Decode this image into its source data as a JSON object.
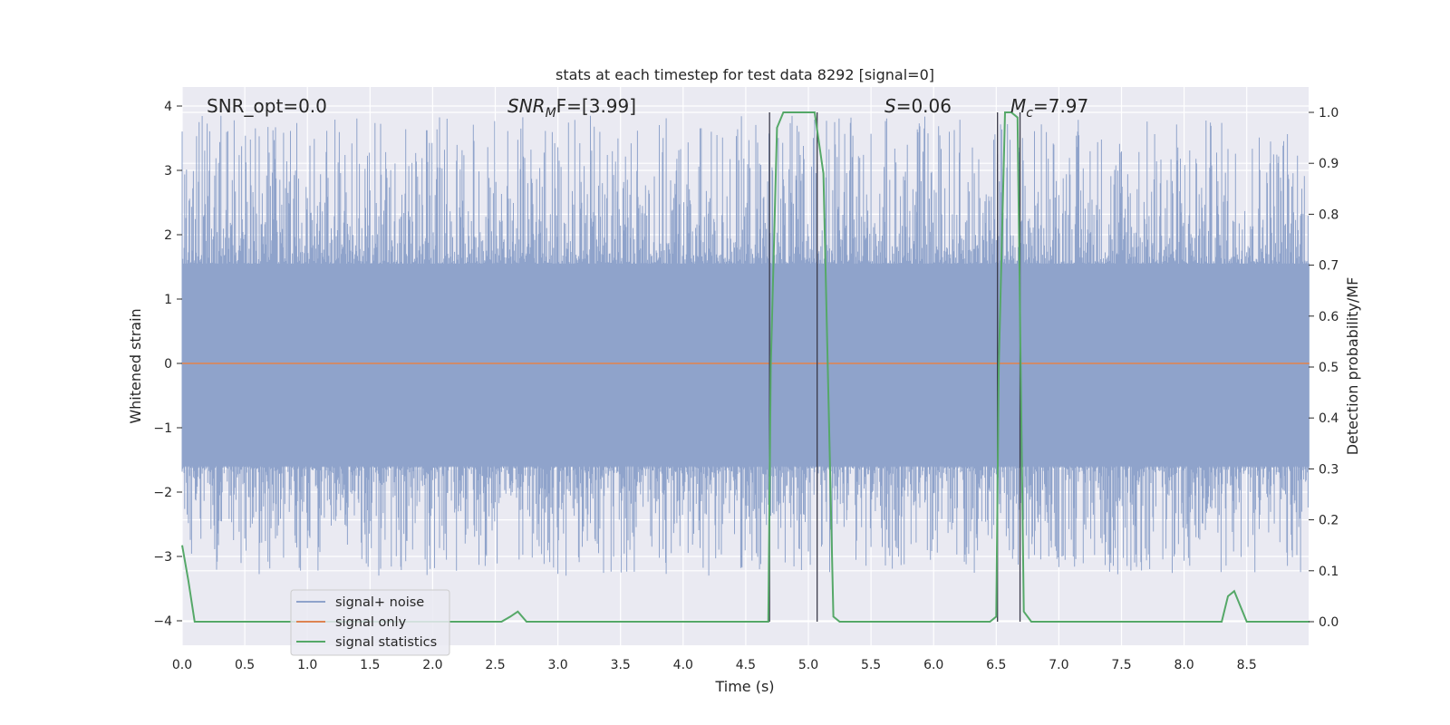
{
  "chart_data": {
    "type": "line",
    "title": "stats at each timestep for test data 8292 [signal=0]",
    "xlabel": "Time (s)",
    "ylabel": "Whitened strain",
    "y2label": "Detection probability/MF",
    "xlim": [
      0,
      9.0
    ],
    "ylim": [
      -4.4,
      4.3
    ],
    "y2lim": [
      -0.048,
      1.048
    ],
    "grid": true,
    "x_ticks": [
      "0.0",
      "0.5",
      "1.0",
      "1.5",
      "2.0",
      "2.5",
      "3.0",
      "3.5",
      "4.0",
      "4.5",
      "5.0",
      "5.5",
      "6.0",
      "6.5",
      "7.0",
      "7.5",
      "8.0",
      "8.5"
    ],
    "y_ticks": [
      "4",
      "3",
      "2",
      "1",
      "0",
      "−1",
      "−2",
      "−3",
      "−4"
    ],
    "y2_ticks": [
      "1.0",
      "0.9",
      "0.8",
      "0.7",
      "0.6",
      "0.5",
      "0.4",
      "0.3",
      "0.2",
      "0.1",
      "0.0"
    ],
    "annotations": {
      "snr_opt": "SNR_opt=0.0",
      "snr_mf_main": "SNR",
      "snr_mf_sub": "M",
      "snr_mf_tail": "F=[3.99]",
      "s_main": "S",
      "s_tail": "=0.06",
      "mc_main": "M",
      "mc_sub": "c",
      "mc_tail": "=7.97"
    },
    "legend": {
      "placement": "lower-left",
      "entries": [
        "signal+ noise",
        "signal only",
        "signal statistics"
      ]
    },
    "colors": {
      "noise": "#8fa3cb",
      "signal": "#dd8452",
      "stats": "#55a868",
      "vlines": "#3a3a4a",
      "background": "#eaeaf2",
      "grid": "#ffffff"
    },
    "series": [
      {
        "name": "signal+ noise",
        "description_style": "noise band",
        "band_limits": [
          -1.6,
          1.55
        ],
        "peak_envelope": [
          -3.3,
          3.9
        ]
      },
      {
        "name": "signal only",
        "x": [
          0,
          9.0
        ],
        "y": [
          0,
          0
        ]
      },
      {
        "name": "signal statistics",
        "axis": "y2",
        "x": [
          0.0,
          0.05,
          0.1,
          0.15,
          2.55,
          2.62,
          2.68,
          2.75,
          4.68,
          4.7,
          4.75,
          4.8,
          4.9,
          5.05,
          5.12,
          5.2,
          5.25,
          6.45,
          6.5,
          6.52,
          6.57,
          6.6,
          6.62,
          6.67,
          6.72,
          6.78,
          8.3,
          8.35,
          8.4,
          8.45,
          8.5,
          8.55,
          9.0
        ],
        "y": [
          0.15,
          0.08,
          0.0,
          0.0,
          0.0,
          0.01,
          0.02,
          0.0,
          0.0,
          0.5,
          0.97,
          1.0,
          1.0,
          1.0,
          0.88,
          0.01,
          0.0,
          0.0,
          0.01,
          0.5,
          1.0,
          1.0,
          1.0,
          0.99,
          0.02,
          0.0,
          0.0,
          0.05,
          0.06,
          0.03,
          0.0,
          0.0,
          0.0
        ]
      }
    ],
    "vertical_lines": [
      4.69,
      5.07,
      6.51,
      6.69
    ]
  }
}
